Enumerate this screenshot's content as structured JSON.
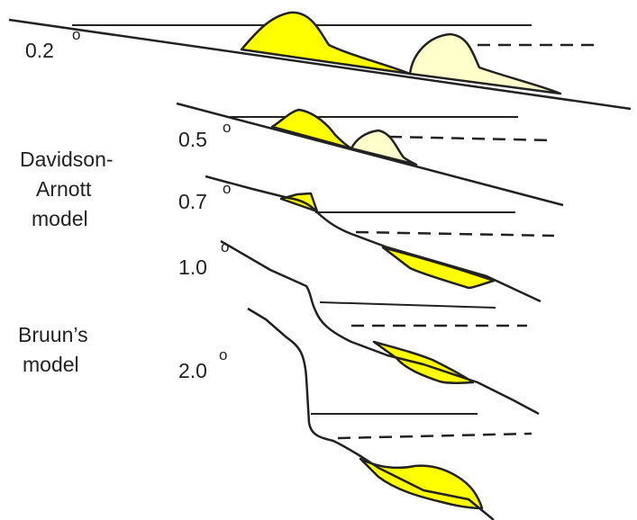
{
  "slopes": [
    {
      "label": "0.2",
      "degree": "o"
    },
    {
      "label": "0.5",
      "degree": "o"
    },
    {
      "label": "0.7",
      "degree": "o"
    },
    {
      "label": "1.0",
      "degree": "o"
    },
    {
      "label": "2.0",
      "degree": "o"
    }
  ],
  "models": [
    {
      "lines": [
        "Davidson-",
        "Arnott",
        "model"
      ]
    },
    {
      "lines": [
        "Bruun’s",
        "model"
      ]
    }
  ]
}
